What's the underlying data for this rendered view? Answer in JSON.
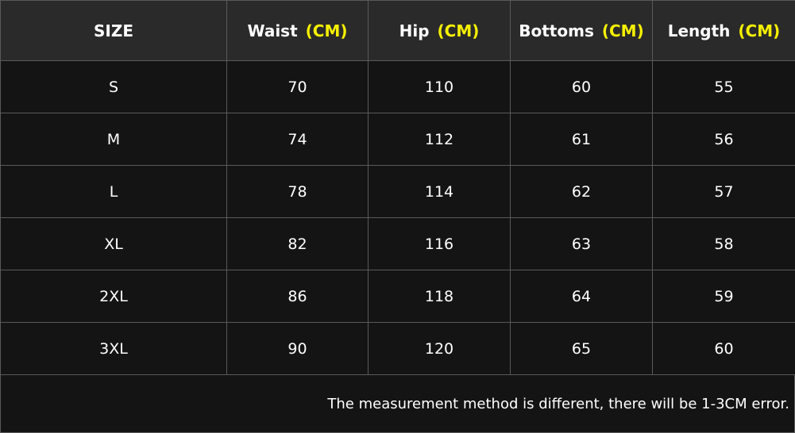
{
  "chart_data": {
    "type": "table",
    "columns": [
      {
        "label": "SIZE",
        "unit": ""
      },
      {
        "label": "Waist",
        "unit": "(CM)"
      },
      {
        "label": "Hip",
        "unit": "(CM)"
      },
      {
        "label": "Bottoms",
        "unit": "(CM)"
      },
      {
        "label": "Length",
        "unit": "(CM)"
      }
    ],
    "rows": [
      [
        "S",
        "70",
        "110",
        "60",
        "55"
      ],
      [
        "M",
        "74",
        "112",
        "61",
        "56"
      ],
      [
        "L",
        "78",
        "114",
        "62",
        "57"
      ],
      [
        "XL",
        "82",
        "116",
        "63",
        "58"
      ],
      [
        "2XL",
        "86",
        "118",
        "64",
        "59"
      ],
      [
        "3XL",
        "90",
        "120",
        "65",
        "60"
      ]
    ],
    "note": "The measurement method is different, there will be 1-3CM error."
  },
  "colors": {
    "header_bg": "#2a2a2a",
    "body_bg": "#141414",
    "unit_text": "#f5f000",
    "border": "#5a5a5a"
  }
}
